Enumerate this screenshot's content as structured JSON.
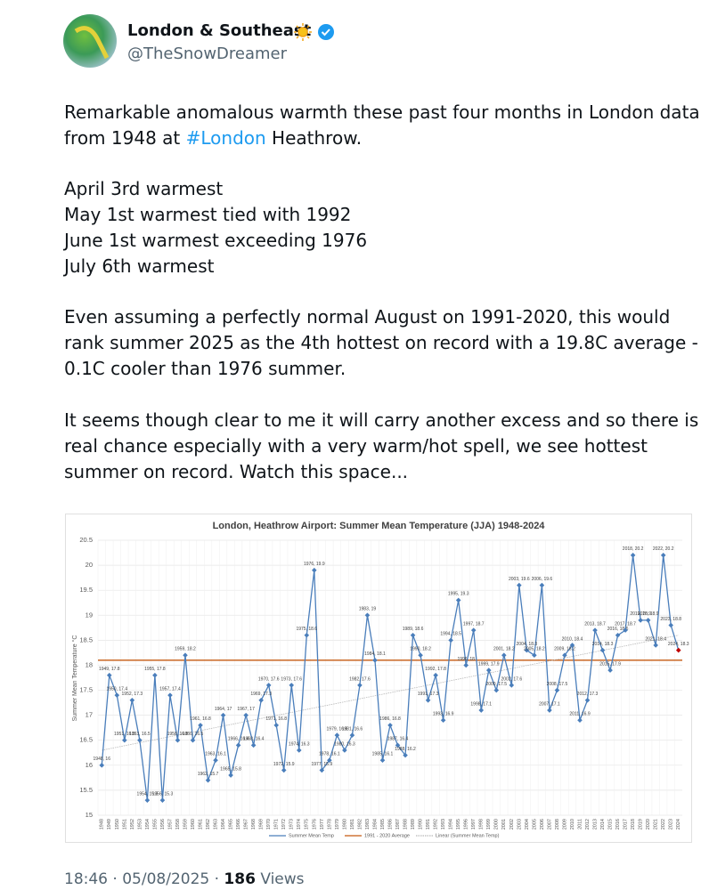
{
  "header": {
    "name": "London & Southeast",
    "handle": "@TheSnowDreamer"
  },
  "body": {
    "p1": {
      "line1": "Remarkable anomalous warmth these past four months in London data",
      "line2_pre": "from 1948 at ",
      "hashtag": "#London",
      "line2_post": " Heathrow."
    },
    "p2": [
      "April 3rd warmest",
      "May 1st warmest tied with 1992",
      "June 1st warmest exceeding 1976",
      "July 6th warmest"
    ],
    "p3": [
      "Even assuming a perfectly normal August on 1991-2020, this would",
      "rank summer 2025 as the 4th hottest on record with a 19.8C average -",
      "0.1C cooler than 1976 summer."
    ],
    "p4": [
      "It seems though clear to me it will carry another excess and so there is a",
      "real chance especially with a very warm/hot spell, we see hottest",
      "summer on record. Watch this space..."
    ]
  },
  "chart_data": {
    "type": "line",
    "title": "London, Heathrow Airport: Summer Mean Temperature (JJA) 1948-2024",
    "y_label": "Summer Mean Temperature °C",
    "categories": [
      "1948",
      "1949",
      "1950",
      "1951",
      "1952",
      "1953",
      "1954",
      "1955",
      "1956",
      "1957",
      "1958",
      "1959",
      "1960",
      "1961",
      "1962",
      "1963",
      "1964",
      "1965",
      "1966",
      "1967",
      "1968",
      "1969",
      "1970",
      "1971",
      "1972",
      "1973",
      "1974",
      "1975",
      "1976",
      "1977",
      "1978",
      "1979",
      "1980",
      "1981",
      "1982",
      "1983",
      "1984",
      "1985",
      "1986",
      "1987",
      "1988",
      "1989",
      "1990",
      "1991",
      "1992",
      "1993",
      "1994",
      "1995",
      "1996",
      "1997",
      "1998",
      "1999",
      "2000",
      "2001",
      "2002",
      "2003",
      "2004",
      "2005",
      "2006",
      "2007",
      "2008",
      "2009",
      "2010",
      "2011",
      "2012",
      "2013",
      "2014",
      "2015",
      "2016",
      "2017",
      "2018",
      "2019",
      "2020",
      "2021",
      "2022",
      "2023",
      "2024"
    ],
    "series": [
      {
        "name": "Summer Mean Temp",
        "color": "#4a7ebb",
        "highlight_color": "#c00000",
        "values": [
          16,
          17.8,
          17.4,
          16.5,
          17.3,
          16.5,
          15.3,
          17.8,
          15.3,
          17.4,
          16.5,
          18.2,
          16.5,
          16.8,
          15.7,
          16.1,
          17,
          15.8,
          16.4,
          17,
          16.4,
          17.3,
          17.6,
          16.8,
          15.9,
          17.6,
          16.3,
          18.6,
          19.9,
          15.9,
          16.1,
          16.6,
          16.3,
          16.6,
          17.6,
          19,
          18.1,
          16.1,
          16.8,
          16.4,
          16.2,
          18.6,
          18.2,
          17.3,
          17.8,
          16.9,
          18.5,
          19.3,
          18,
          18.7,
          17.1,
          17.9,
          17.5,
          18.2,
          17.6,
          19.6,
          18.3,
          18.2,
          19.6,
          17.1,
          17.5,
          18.2,
          18.4,
          16.9,
          17.3,
          18.7,
          18.3,
          17.9,
          18.6,
          18.7,
          20.2,
          18.9,
          18.9,
          18.4,
          20.2,
          18.8,
          18.3
        ],
        "value_labels": [
          "1948, 16",
          "1949, 17.8",
          "1950, 17.4",
          "1951, 16.5",
          "1952, 17.3",
          "1953, 16.5",
          "1954, 15.3",
          "1955, 17.8",
          "1956, 15.3",
          "1957, 17.4",
          "1958, 16.5",
          "1959, 18.2",
          "1960, 16.5",
          "1961, 16.8",
          "1962, 15.7",
          "1963, 16.1",
          "1964, 17",
          "1965, 15.8",
          "1966, 16.4",
          "1967, 17",
          "1968, 16.4",
          "1969, 17.3",
          "1970, 17.6",
          "1971, 16.8",
          "1972, 15.9",
          "1973, 17.6",
          "1974, 16.3",
          "1975, 18.6",
          "1976, 19.9",
          "1977, 15.9",
          "1978, 16.1",
          "1979, 16.6",
          "1980, 16.3",
          "1981, 16.6",
          "1982, 17.6",
          "1983, 19",
          "1984, 18.1",
          "1985, 16.1",
          "1986, 16.8",
          "1987, 16.4",
          "1988, 16.2",
          "1989, 18.6",
          "1990, 18.2",
          "1991, 17.3",
          "1992, 17.8",
          "1993, 16.9",
          "1994, 18.5",
          "1995, 19.3",
          "1996, 18",
          "1997, 18.7",
          "1998, 17.1",
          "1999, 17.9",
          "2000, 17.5",
          "2001, 18.2",
          "2002, 17.6",
          "2003, 19.6",
          "2004, 18.3",
          "2005, 18.2",
          "2006, 19.6",
          "2007, 17.1",
          "2008, 17.5",
          "2009, 18.2",
          "2010, 18.4",
          "2011, 16.9",
          "2012, 17.3",
          "2013, 18.7",
          "2014, 18.3",
          "2015, 17.9",
          "2016, 18.6",
          "2017, 18.7",
          "2018, 20.2",
          "2019, 18.9",
          "2020, 18.9",
          "2021, 18.4",
          "2022, 20.2",
          "2023, 18.8",
          "2024, 18.3"
        ]
      }
    ],
    "average": {
      "name": "1991 - 2020 Average",
      "value": 18.1,
      "color": "#c55a11"
    },
    "trend": {
      "name": "Linear (Summer Mean Temp)",
      "values": [
        16.3,
        18.6
      ],
      "color": "#b8b8b8"
    },
    "ylim": [
      15,
      20.5
    ],
    "yticks": [
      15,
      15.5,
      16,
      16.5,
      17,
      17.5,
      18,
      18.5,
      19,
      19.5,
      20,
      20.5
    ],
    "grid": true
  },
  "footer": {
    "time": "18:46",
    "separator": "·",
    "date": "05/08/2025",
    "views": "186",
    "views_label": "Views"
  }
}
